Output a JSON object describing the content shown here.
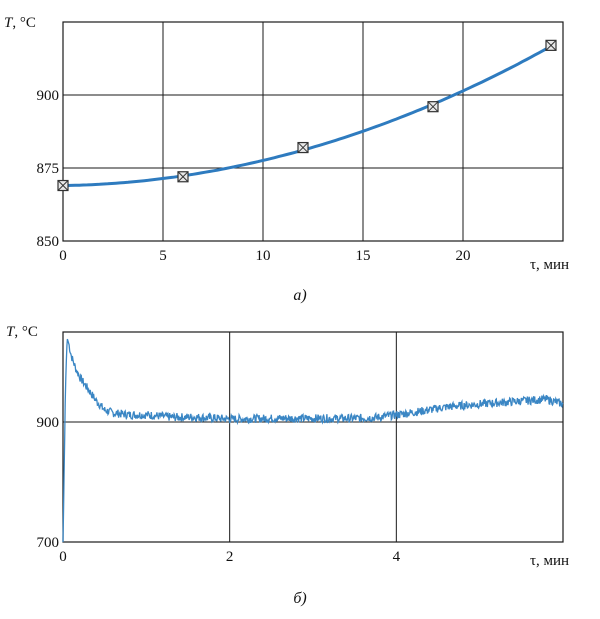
{
  "chart_data": [
    {
      "type": "line",
      "caption": "а)",
      "ylabel_var": "T",
      "ylabel_unit": ", °C",
      "xlabel": "τ, мин",
      "xlim": [
        0,
        25
      ],
      "ylim": [
        850,
        925
      ],
      "xticks": [
        0,
        5,
        10,
        15,
        20
      ],
      "yticks": [
        850,
        875,
        900
      ],
      "ytick_labels": [
        "850",
        "875",
        "900"
      ],
      "xtick_labels": [
        "0",
        "5",
        "10",
        "15",
        "20"
      ],
      "grid": true,
      "line_color": "#2e7bbf",
      "marker_color": "#333333",
      "series": [
        {
          "x": [
            0,
            6,
            12,
            18.5,
            24.4
          ],
          "y": [
            869,
            872,
            882,
            896,
            917
          ]
        }
      ]
    },
    {
      "type": "line",
      "caption": "б)",
      "ylabel_var": "T",
      "ylabel_unit": ", °C",
      "xlabel": "τ, мин",
      "xlim": [
        0,
        6
      ],
      "ylim": [
        700,
        1050
      ],
      "xticks": [
        0,
        2,
        4
      ],
      "yticks": [
        700,
        900
      ],
      "ytick_labels": [
        "700",
        "900"
      ],
      "xtick_labels": [
        "0",
        "2",
        "4"
      ],
      "grid": true,
      "line_color": "#3a86c4",
      "series": [
        {
          "x": [
            0,
            0.03,
            0.05,
            0.07,
            0.1,
            0.15,
            0.2,
            0.3,
            0.4,
            0.5,
            0.6,
            0.8,
            1.0,
            1.3,
            1.6,
            2.0,
            2.5,
            3.0,
            3.5,
            3.8,
            4.0,
            4.3,
            4.6,
            5.0,
            5.5,
            5.8,
            6.0
          ],
          "y": [
            700,
            960,
            1040,
            1030,
            1010,
            990,
            975,
            955,
            935,
            920,
            915,
            912,
            912,
            908,
            908,
            905,
            906,
            906,
            906,
            908,
            912,
            918,
            925,
            930,
            935,
            938,
            930
          ]
        }
      ]
    }
  ]
}
